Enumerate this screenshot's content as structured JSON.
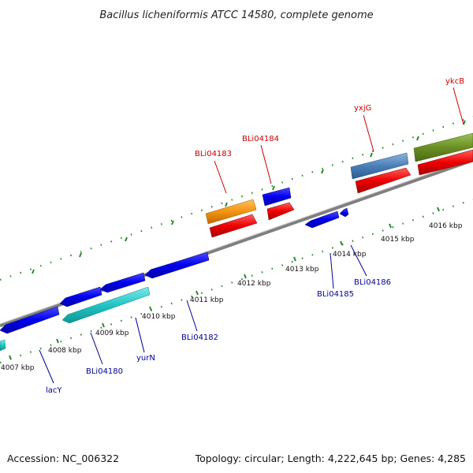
{
  "title": "Bacillus licheniformis ATCC 14580, complete genome",
  "footer": {
    "accession": "Accession: NC_006322",
    "summary": "Topology: circular; Length: 4,222,645 bp; Genes: 4,285"
  },
  "colors": {
    "backbone": "#808080",
    "label_top": "#cc0000",
    "label_bottom": "#000099",
    "tick": "#2a8a2a"
  },
  "scale_labels": [
    "4007 kbp",
    "4008 kbp",
    "4009 kbp",
    "4010 kbp",
    "4011 kbp",
    "4012 kbp",
    "4013 kbp",
    "4014 kbp",
    "4015 kbp",
    "4016 kbp"
  ],
  "gene_labels_top": [
    "BLi04183",
    "BLi04184",
    "yxjG",
    "ykcB"
  ],
  "gene_labels_bottom": [
    "lacY",
    "BLi04180",
    "yurN",
    "BLi04182",
    "BLi04185",
    "BLi04186"
  ],
  "features": [
    {
      "name": "feature-cyan-1",
      "color": "cyan",
      "strand": "reverse"
    },
    {
      "name": "feature-blue-1",
      "color": "blue",
      "strand": "reverse"
    },
    {
      "name": "feature-blue-2",
      "color": "blue",
      "strand": "reverse"
    },
    {
      "name": "feature-blue-3",
      "color": "blue",
      "strand": "reverse"
    },
    {
      "name": "feature-blue-4",
      "color": "blue",
      "strand": "reverse"
    },
    {
      "name": "feature-cyan-2",
      "color": "cyan",
      "strand": "reverse"
    },
    {
      "name": "feature-blue-5",
      "color": "blue",
      "strand": "reverse"
    },
    {
      "name": "feature-blue-6",
      "color": "blue",
      "strand": "reverse"
    },
    {
      "name": "feature-orange-1",
      "color": "orange",
      "strand": "forward"
    },
    {
      "name": "feature-red-1",
      "color": "red",
      "strand": "forward"
    },
    {
      "name": "feature-blue-7",
      "color": "blue",
      "strand": "forward"
    },
    {
      "name": "feature-red-2",
      "color": "red",
      "strand": "forward"
    },
    {
      "name": "feature-steelblue-1",
      "color": "steelblue",
      "strand": "forward"
    },
    {
      "name": "feature-red-3",
      "color": "red",
      "strand": "forward"
    },
    {
      "name": "feature-olive-1",
      "color": "olive",
      "strand": "forward"
    },
    {
      "name": "feature-red-4",
      "color": "red",
      "strand": "forward"
    }
  ]
}
